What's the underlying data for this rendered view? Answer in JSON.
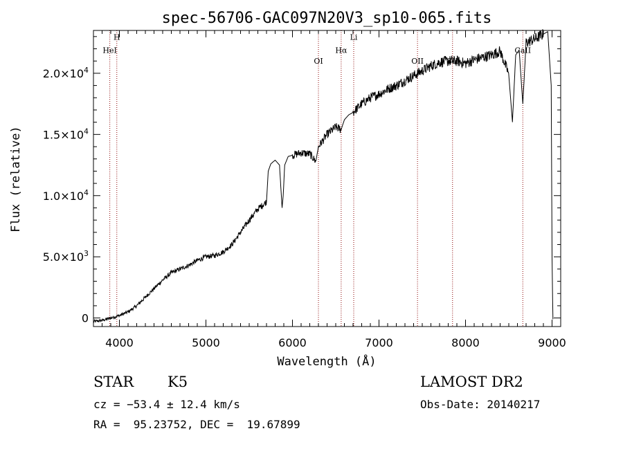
{
  "chart_data": {
    "type": "line",
    "title": "spec-56706-GAC097N20V3_sp10-065.fits",
    "xlabel": "Wavelength (Å)",
    "ylabel": "Flux (relative)",
    "xlim": [
      3700,
      9100
    ],
    "ylim": [
      -700,
      23500
    ],
    "x_ticks": [
      4000,
      5000,
      6000,
      7000,
      8000,
      9000
    ],
    "x_tick_labels": [
      "4000",
      "5000",
      "6000",
      "7000",
      "8000",
      "9000"
    ],
    "y_ticks": [
      0,
      5000,
      10000,
      15000,
      20000
    ],
    "y_tick_labels": [
      {
        "mantissa": "0",
        "exp": ""
      },
      {
        "mantissa": "5.0×10",
        "exp": "3"
      },
      {
        "mantissa": "1.0×10",
        "exp": "4"
      },
      {
        "mantissa": "1.5×10",
        "exp": "4"
      },
      {
        "mantissa": "2.0×10",
        "exp": "4"
      }
    ],
    "line_color": "#000000",
    "marker_color": "#8b0000",
    "series": [
      {
        "x": [
          3700,
          3800,
          3900,
          4000,
          4100,
          4200,
          4300,
          4400,
          4500,
          4600,
          4700,
          4800,
          4900,
          5000,
          5100,
          5200,
          5300,
          5400,
          5500,
          5600,
          5700,
          5720,
          5750,
          5800,
          5850,
          5880,
          5893,
          5910,
          5950,
          6000,
          6100,
          6200,
          6270,
          6300,
          6400,
          6500,
          6563,
          6600,
          6650,
          6700,
          6800,
          6900,
          7000,
          7100,
          7200,
          7300,
          7400,
          7500,
          7600,
          7700,
          7800,
          7900,
          8000,
          8100,
          8200,
          8300,
          8400,
          8498,
          8542,
          8580,
          8620,
          8662,
          8700,
          8800,
          8900,
          8950,
          8990,
          9000,
          9010
        ],
        "y": [
          -300,
          -200,
          0,
          200,
          500,
          1000,
          1700,
          2400,
          3100,
          3700,
          4000,
          4300,
          4700,
          5000,
          5100,
          5400,
          6000,
          7000,
          8000,
          8900,
          9500,
          12000,
          12600,
          12900,
          12500,
          9000,
          10000,
          12500,
          13200,
          13300,
          13500,
          13400,
          12800,
          14000,
          15000,
          15600,
          15400,
          16200,
          16600,
          16800,
          17500,
          18000,
          18300,
          18700,
          19000,
          19400,
          19800,
          20200,
          20600,
          20900,
          21000,
          21000,
          20800,
          21100,
          21300,
          21500,
          21800,
          20000,
          16000,
          21500,
          21900,
          17500,
          22500,
          22800,
          23200,
          23400,
          19000,
          5000,
          -100
        ]
      }
    ],
    "line_markers": [
      {
        "x": 3889,
        "label": "HeI",
        "label_y": 21650
      },
      {
        "x": 3970,
        "label": "H",
        "label_y": 22750
      },
      {
        "x": 6300,
        "label": "OI",
        "label_y": 20800
      },
      {
        "x": 6563,
        "label": "Hα",
        "label_y": 21650
      },
      {
        "x": 6708,
        "label": "Li",
        "label_y": 22750
      },
      {
        "x": 7445,
        "label": "OII",
        "label_y": 20800
      },
      {
        "x": 7850,
        "label": "SII",
        "label_y": 20800
      },
      {
        "x": 8662,
        "label": "CaII",
        "label_y": 21650
      }
    ],
    "grid": false
  },
  "info": {
    "object_type": "STAR",
    "subclass": "K5",
    "survey": "LAMOST DR2",
    "cz": "cz = −53.4 ± 12.4 km/s",
    "obs_date": "Obs-Date: 20140217",
    "coords": "RA =  95.23752, DEC =  19.67899"
  }
}
